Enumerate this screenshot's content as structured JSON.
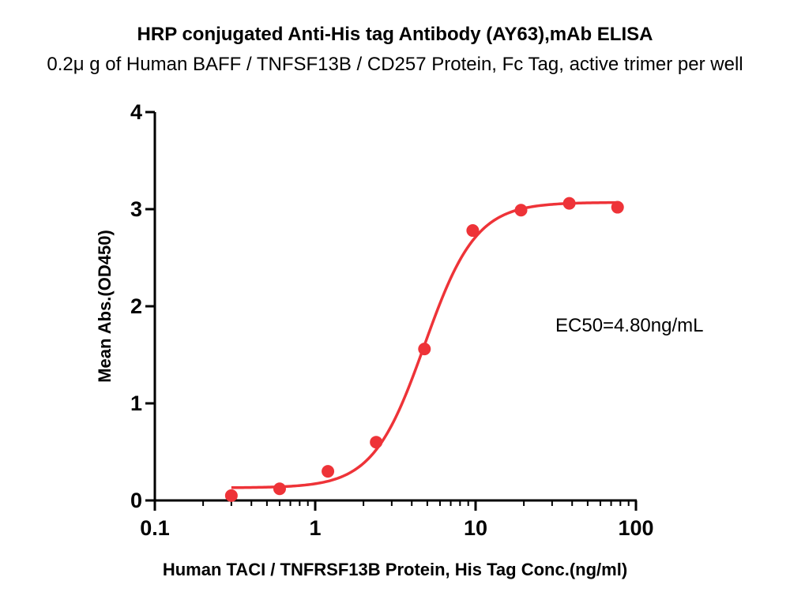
{
  "chart_data": {
    "type": "scatter",
    "title": "HRP conjugated Anti-His tag Antibody (AY63),mAb ELISA",
    "subtitle": "0.2μ g of Human BAFF / TNFSF13B / CD257 Protein, Fc Tag, active trimer per well",
    "xlabel": "Human TACI / TNFRSF13B Protein, His Tag Conc.(ng/ml)",
    "ylabel": "Mean Abs.(OD450)",
    "x_scale": "log",
    "xlim": [
      0.1,
      100
    ],
    "ylim": [
      0,
      4
    ],
    "x_ticks": [
      "0.1",
      "1",
      "10",
      "100"
    ],
    "y_ticks": [
      "0",
      "1",
      "2",
      "3",
      "4"
    ],
    "grid": false,
    "color": "#ee3338",
    "annotation": "EC50=4.80ng/mL",
    "points": {
      "x": [
        0.3,
        0.6,
        1.2,
        2.4,
        4.8,
        9.6,
        19.2,
        38.4,
        76.8
      ],
      "y": [
        0.05,
        0.12,
        0.3,
        0.6,
        1.56,
        2.78,
        2.99,
        3.06,
        3.02
      ]
    },
    "fit": {
      "bottom": 0.13,
      "top": 3.07,
      "ec50": 4.8,
      "hill": 2.7
    }
  }
}
